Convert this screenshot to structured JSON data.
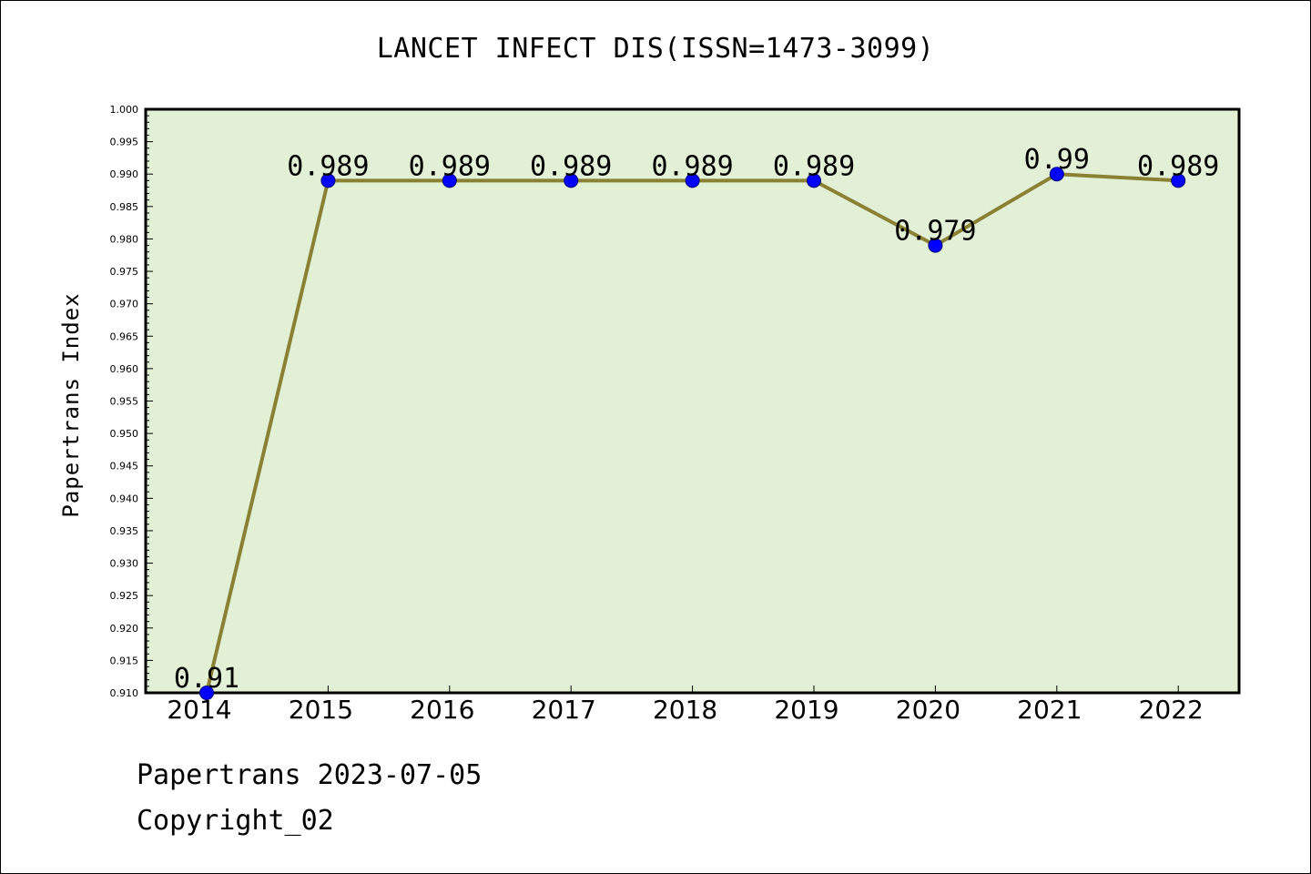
{
  "footer": {
    "line1": "Papertrans 2023-07-05",
    "line2": "Copyright_02"
  },
  "chart_data": {
    "type": "line",
    "title": "LANCET INFECT DIS(ISSN=1473-3099)",
    "xlabel": "",
    "ylabel": "Papertrans Index",
    "categories": [
      "2014",
      "2015",
      "2016",
      "2017",
      "2018",
      "2019",
      "2020",
      "2021",
      "2022"
    ],
    "series": [
      {
        "values": [
          0.91,
          0.989,
          0.989,
          0.989,
          0.989,
          0.989,
          0.979,
          0.99,
          0.989
        ],
        "labels": [
          "0.91",
          "0.989",
          "0.989",
          "0.989",
          "0.989",
          "0.989",
          "0.979",
          "0.99",
          "0.989"
        ]
      }
    ],
    "ylim": [
      0.91,
      1.0
    ],
    "ytick_labels": [
      "0.910",
      "0.915",
      "0.920",
      "0.925",
      "0.930",
      "0.935",
      "0.940",
      "0.945",
      "0.950",
      "0.955",
      "0.960",
      "0.965",
      "0.970",
      "0.975",
      "0.980",
      "0.985",
      "0.990",
      "0.995",
      "1.000"
    ],
    "grid": false,
    "legend": "none",
    "colors": {
      "plot_background": "#e2f0d6",
      "line": "#8b8134",
      "marker": "#0000ff",
      "axes": "#000000"
    }
  }
}
